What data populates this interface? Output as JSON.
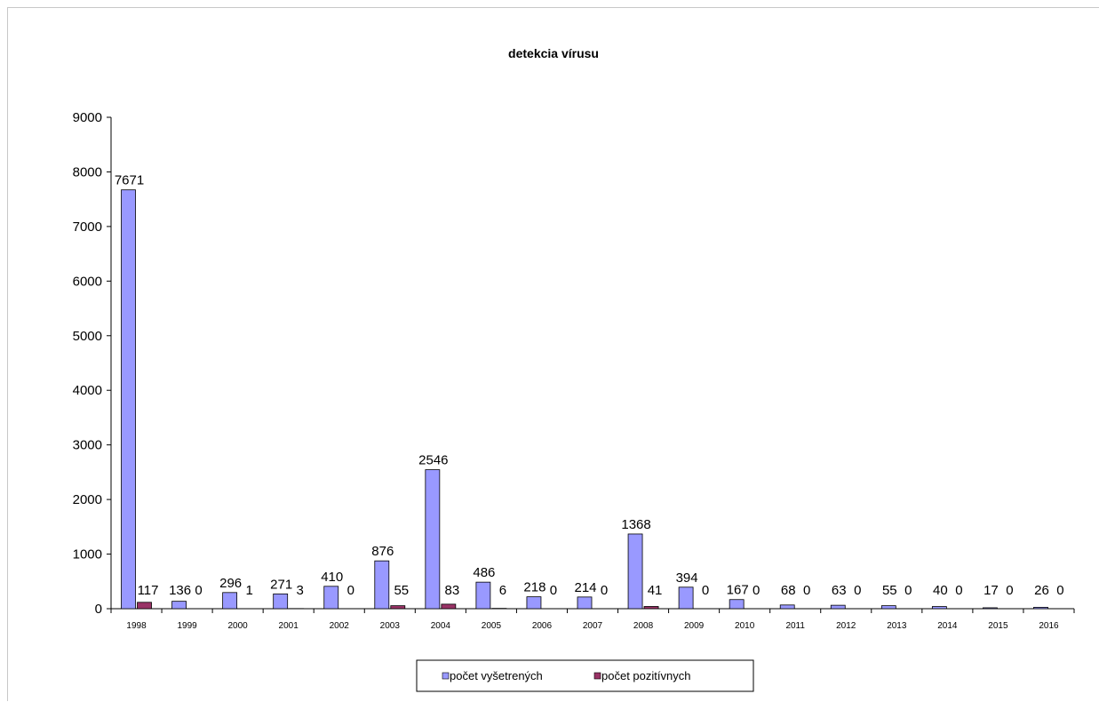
{
  "chart_data": {
    "type": "bar",
    "title": "detekcia vírusu",
    "xlabel": "",
    "ylabel": "",
    "categories": [
      "1998",
      "1999",
      "2000",
      "2001",
      "2002",
      "2003",
      "2004",
      "2005",
      "2006",
      "2007",
      "2008",
      "2009",
      "2010",
      "2011",
      "2012",
      "2013",
      "2014",
      "2015",
      "2016"
    ],
    "series": [
      {
        "name": "počet vyšetrených",
        "color": "#9999ff",
        "values": [
          7671,
          136,
          296,
          271,
          410,
          876,
          2546,
          486,
          218,
          214,
          1368,
          394,
          167,
          68,
          63,
          55,
          40,
          17,
          26
        ]
      },
      {
        "name": "počet pozitívnych",
        "color": "#993366",
        "values": [
          117,
          0,
          1,
          3,
          0,
          55,
          83,
          6,
          0,
          0,
          41,
          0,
          0,
          0,
          0,
          0,
          0,
          0,
          0
        ]
      }
    ],
    "ylim": [
      0,
      9000
    ],
    "yticks": [
      0,
      1000,
      2000,
      3000,
      4000,
      5000,
      6000,
      7000,
      8000,
      9000
    ],
    "grid": false,
    "legend": "bottom"
  }
}
